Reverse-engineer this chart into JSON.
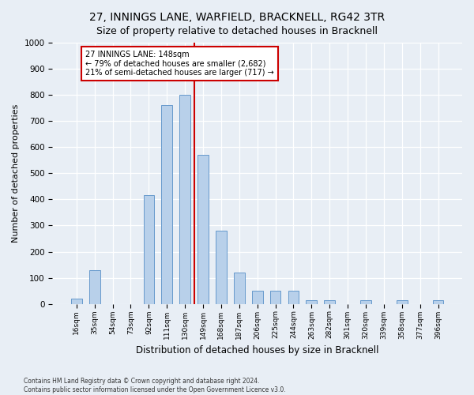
{
  "title": "27, INNINGS LANE, WARFIELD, BRACKNELL, RG42 3TR",
  "subtitle": "Size of property relative to detached houses in Bracknell",
  "xlabel": "Distribution of detached houses by size in Bracknell",
  "ylabel": "Number of detached properties",
  "categories": [
    "16sqm",
    "35sqm",
    "54sqm",
    "73sqm",
    "92sqm",
    "111sqm",
    "130sqm",
    "149sqm",
    "168sqm",
    "187sqm",
    "206sqm",
    "225sqm",
    "244sqm",
    "263sqm",
    "282sqm",
    "301sqm",
    "320sqm",
    "339sqm",
    "358sqm",
    "377sqm",
    "396sqm"
  ],
  "values": [
    20,
    130,
    0,
    0,
    415,
    760,
    800,
    570,
    280,
    120,
    50,
    50,
    50,
    15,
    15,
    0,
    15,
    0,
    15,
    0,
    15
  ],
  "bar_color": "#b8d0ea",
  "bar_edge_color": "#6699cc",
  "vline_color": "#cc0000",
  "annotation_text": "27 INNINGS LANE: 148sqm\n← 79% of detached houses are smaller (2,682)\n21% of semi-detached houses are larger (717) →",
  "annotation_box_color": "#ffffff",
  "annotation_box_edge_color": "#cc0000",
  "ylim": [
    0,
    1000
  ],
  "yticks": [
    0,
    100,
    200,
    300,
    400,
    500,
    600,
    700,
    800,
    900,
    1000
  ],
  "footer_line1": "Contains HM Land Registry data © Crown copyright and database right 2024.",
  "footer_line2": "Contains public sector information licensed under the Open Government Licence v3.0.",
  "bg_color": "#e8eef5",
  "plot_bg_color": "#e8eef5",
  "title_fontsize": 10,
  "subtitle_fontsize": 9,
  "xlabel_fontsize": 8.5,
  "ylabel_fontsize": 8
}
